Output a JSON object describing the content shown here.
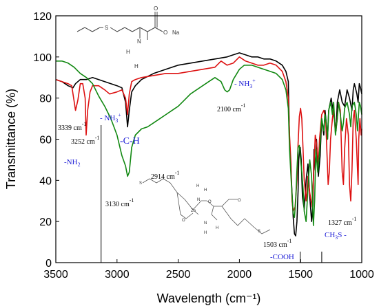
{
  "chart_data": {
    "type": "line",
    "title": "",
    "xlabel": "Wavelength (cm⁻¹)",
    "ylabel": "Transmittance (%)",
    "xlim": [
      3500,
      1000
    ],
    "ylim": [
      0,
      120
    ],
    "x_reversed": true,
    "x_ticks": [
      3500,
      3000,
      2500,
      2000,
      1500,
      1000
    ],
    "y_ticks": [
      0,
      20,
      40,
      60,
      80,
      100,
      120
    ],
    "grid": false,
    "legend": "none",
    "series": [
      {
        "color": "#000000",
        "points": [
          [
            3500,
            89
          ],
          [
            3450,
            88
          ],
          [
            3400,
            86
          ],
          [
            3360,
            85
          ],
          [
            3339,
            87
          ],
          [
            3300,
            89
          ],
          [
            3250,
            89
          ],
          [
            3200,
            90
          ],
          [
            3150,
            89
          ],
          [
            3100,
            88
          ],
          [
            3050,
            87
          ],
          [
            3000,
            86
          ],
          [
            2960,
            85
          ],
          [
            2930,
            78
          ],
          [
            2914,
            66
          ],
          [
            2900,
            74
          ],
          [
            2880,
            83
          ],
          [
            2850,
            86
          ],
          [
            2800,
            89
          ],
          [
            2700,
            92
          ],
          [
            2600,
            94
          ],
          [
            2500,
            96
          ],
          [
            2400,
            97
          ],
          [
            2300,
            98
          ],
          [
            2200,
            99
          ],
          [
            2100,
            100
          ],
          [
            2050,
            101
          ],
          [
            2000,
            102
          ],
          [
            1950,
            101
          ],
          [
            1900,
            100
          ],
          [
            1850,
            100
          ],
          [
            1800,
            99
          ],
          [
            1750,
            99
          ],
          [
            1700,
            98
          ],
          [
            1650,
            96
          ],
          [
            1620,
            93
          ],
          [
            1600,
            88
          ],
          [
            1590,
            60
          ],
          [
            1575,
            40
          ],
          [
            1560,
            22
          ],
          [
            1550,
            14
          ],
          [
            1540,
            13
          ],
          [
            1530,
            20
          ],
          [
            1520,
            35
          ],
          [
            1515,
            50
          ],
          [
            1508,
            55
          ],
          [
            1503,
            56
          ],
          [
            1495,
            50
          ],
          [
            1485,
            32
          ],
          [
            1470,
            26
          ],
          [
            1455,
            40
          ],
          [
            1440,
            48
          ],
          [
            1425,
            32
          ],
          [
            1410,
            20
          ],
          [
            1400,
            28
          ],
          [
            1390,
            55
          ],
          [
            1380,
            45
          ],
          [
            1370,
            60
          ],
          [
            1355,
            42
          ],
          [
            1340,
            52
          ],
          [
            1327,
            70
          ],
          [
            1310,
            62
          ],
          [
            1300,
            74
          ],
          [
            1290,
            68
          ],
          [
            1280,
            60
          ],
          [
            1270,
            74
          ],
          [
            1250,
            80
          ],
          [
            1230,
            72
          ],
          [
            1210,
            64
          ],
          [
            1200,
            78
          ],
          [
            1180,
            84
          ],
          [
            1160,
            78
          ],
          [
            1140,
            76
          ],
          [
            1120,
            84
          ],
          [
            1100,
            80
          ],
          [
            1080,
            74
          ],
          [
            1070,
            84
          ],
          [
            1060,
            87
          ],
          [
            1040,
            82
          ],
          [
            1030,
            78
          ],
          [
            1020,
            87
          ],
          [
            1010,
            85
          ],
          [
            1000,
            82
          ]
        ]
      },
      {
        "color": "#dd1111",
        "points": [
          [
            3500,
            89
          ],
          [
            3450,
            88
          ],
          [
            3400,
            87
          ],
          [
            3370,
            86
          ],
          [
            3339,
            74
          ],
          [
            3320,
            79
          ],
          [
            3300,
            87
          ],
          [
            3280,
            87
          ],
          [
            3260,
            80
          ],
          [
            3252,
            62
          ],
          [
            3240,
            74
          ],
          [
            3220,
            83
          ],
          [
            3200,
            86
          ],
          [
            3150,
            86
          ],
          [
            3100,
            84
          ],
          [
            3060,
            82
          ],
          [
            3000,
            83
          ],
          [
            2960,
            84
          ],
          [
            2930,
            80
          ],
          [
            2914,
            72
          ],
          [
            2900,
            82
          ],
          [
            2880,
            88
          ],
          [
            2850,
            89
          ],
          [
            2800,
            90
          ],
          [
            2700,
            91
          ],
          [
            2600,
            92
          ],
          [
            2500,
            92
          ],
          [
            2400,
            93
          ],
          [
            2300,
            94
          ],
          [
            2200,
            95
          ],
          [
            2150,
            98
          ],
          [
            2100,
            96
          ],
          [
            2050,
            97
          ],
          [
            2000,
            100
          ],
          [
            1950,
            98
          ],
          [
            1900,
            97
          ],
          [
            1850,
            96
          ],
          [
            1800,
            96
          ],
          [
            1750,
            97
          ],
          [
            1700,
            96
          ],
          [
            1650,
            93
          ],
          [
            1620,
            88
          ],
          [
            1600,
            80
          ],
          [
            1590,
            62
          ],
          [
            1578,
            48
          ],
          [
            1570,
            30
          ],
          [
            1560,
            25
          ],
          [
            1545,
            27
          ],
          [
            1530,
            40
          ],
          [
            1520,
            58
          ],
          [
            1510,
            71
          ],
          [
            1500,
            75
          ],
          [
            1490,
            70
          ],
          [
            1480,
            55
          ],
          [
            1470,
            40
          ],
          [
            1455,
            30
          ],
          [
            1440,
            42
          ],
          [
            1425,
            34
          ],
          [
            1405,
            27
          ],
          [
            1395,
            40
          ],
          [
            1380,
            62
          ],
          [
            1370,
            58
          ],
          [
            1355,
            48
          ],
          [
            1345,
            60
          ],
          [
            1327,
            72
          ],
          [
            1310,
            74
          ],
          [
            1295,
            70
          ],
          [
            1285,
            54
          ],
          [
            1275,
            38
          ],
          [
            1265,
            44
          ],
          [
            1255,
            60
          ],
          [
            1240,
            70
          ],
          [
            1230,
            75
          ],
          [
            1215,
            63
          ],
          [
            1200,
            70
          ],
          [
            1190,
            78
          ],
          [
            1175,
            74
          ],
          [
            1160,
            44
          ],
          [
            1150,
            38
          ],
          [
            1140,
            55
          ],
          [
            1125,
            70
          ],
          [
            1110,
            62
          ],
          [
            1100,
            38
          ],
          [
            1090,
            30
          ],
          [
            1080,
            45
          ],
          [
            1070,
            70
          ],
          [
            1060,
            74
          ],
          [
            1045,
            60
          ],
          [
            1030,
            38
          ],
          [
            1025,
            60
          ],
          [
            1015,
            70
          ],
          [
            1005,
            62
          ],
          [
            1000,
            65
          ]
        ]
      },
      {
        "color": "#118811",
        "points": [
          [
            3500,
            98
          ],
          [
            3450,
            98
          ],
          [
            3400,
            97
          ],
          [
            3350,
            95
          ],
          [
            3300,
            92
          ],
          [
            3250,
            90
          ],
          [
            3200,
            87
          ],
          [
            3150,
            81
          ],
          [
            3130,
            79
          ],
          [
            3100,
            76
          ],
          [
            3050,
            70
          ],
          [
            3000,
            62
          ],
          [
            2960,
            52
          ],
          [
            2930,
            47
          ],
          [
            2914,
            42
          ],
          [
            2900,
            44
          ],
          [
            2880,
            56
          ],
          [
            2850,
            62
          ],
          [
            2800,
            65
          ],
          [
            2750,
            66
          ],
          [
            2700,
            68
          ],
          [
            2650,
            70
          ],
          [
            2600,
            72
          ],
          [
            2550,
            74
          ],
          [
            2500,
            76
          ],
          [
            2450,
            79
          ],
          [
            2400,
            82
          ],
          [
            2350,
            84
          ],
          [
            2300,
            86
          ],
          [
            2250,
            88
          ],
          [
            2200,
            90
          ],
          [
            2150,
            88
          ],
          [
            2120,
            84
          ],
          [
            2100,
            83
          ],
          [
            2080,
            84
          ],
          [
            2050,
            89
          ],
          [
            2000,
            94
          ],
          [
            1960,
            96
          ],
          [
            1900,
            96
          ],
          [
            1850,
            95
          ],
          [
            1800,
            94
          ],
          [
            1750,
            93
          ],
          [
            1700,
            92
          ],
          [
            1650,
            89
          ],
          [
            1620,
            84
          ],
          [
            1600,
            75
          ],
          [
            1590,
            55
          ],
          [
            1575,
            38
          ],
          [
            1560,
            24
          ],
          [
            1550,
            22
          ],
          [
            1540,
            30
          ],
          [
            1530,
            45
          ],
          [
            1520,
            56
          ],
          [
            1510,
            57
          ],
          [
            1503,
            52
          ],
          [
            1490,
            44
          ],
          [
            1480,
            36
          ],
          [
            1470,
            25
          ],
          [
            1455,
            20
          ],
          [
            1440,
            36
          ],
          [
            1425,
            50
          ],
          [
            1410,
            42
          ],
          [
            1395,
            18
          ],
          [
            1385,
            30
          ],
          [
            1375,
            55
          ],
          [
            1360,
            44
          ],
          [
            1345,
            54
          ],
          [
            1335,
            62
          ],
          [
            1327,
            70
          ],
          [
            1310,
            64
          ],
          [
            1300,
            72
          ],
          [
            1290,
            68
          ],
          [
            1280,
            60
          ],
          [
            1270,
            74
          ],
          [
            1255,
            78
          ],
          [
            1240,
            72
          ],
          [
            1230,
            78
          ],
          [
            1215,
            62
          ],
          [
            1200,
            70
          ],
          [
            1190,
            78
          ],
          [
            1175,
            72
          ],
          [
            1160,
            64
          ],
          [
            1150,
            68
          ],
          [
            1140,
            75
          ],
          [
            1120,
            78
          ],
          [
            1100,
            72
          ],
          [
            1090,
            66
          ],
          [
            1080,
            76
          ],
          [
            1060,
            78
          ],
          [
            1045,
            72
          ],
          [
            1035,
            64
          ],
          [
            1020,
            78
          ],
          [
            1010,
            76
          ],
          [
            1000,
            72
          ]
        ]
      }
    ],
    "annotations": [
      {
        "text": "3339 cm",
        "sup": "-1",
        "color": "black"
      },
      {
        "text": "3252 cm",
        "sup": "-1",
        "color": "black"
      },
      {
        "text": "-NH",
        "sub": "2",
        "color": "blue"
      },
      {
        "text": "- NH",
        "sub": "3",
        "sup": "+",
        "color": "blue",
        "id": "nh3_left"
      },
      {
        "text": "-C-H",
        "color": "blue"
      },
      {
        "text": "2914 cm",
        "sup": "-1",
        "color": "black"
      },
      {
        "text": "3130 cm",
        "sup": "-1",
        "color": "black"
      },
      {
        "text": "- NH",
        "sub": "3",
        "sup": "+",
        "color": "blue",
        "id": "nh3_right"
      },
      {
        "text": "2100 cm",
        "sup": "-1",
        "color": "black"
      },
      {
        "text": "1503 cm",
        "sup": "-1",
        "color": "black"
      },
      {
        "text": "-COOH",
        "color": "blue"
      },
      {
        "text": "1327  cm",
        "sup": "-1",
        "color": "black"
      },
      {
        "text": "CH",
        "sub": "3",
        "tail": "S -",
        "color": "blue"
      }
    ],
    "markers": [
      3130,
      1503,
      1327
    ]
  },
  "molecules": {
    "top": {
      "na_label": "Na",
      "o_label": "O",
      "n_label": "N",
      "h_label": "H",
      "s_label": "S"
    },
    "bottom": {
      "zn_label": "Zn",
      "o_label": "O",
      "n_label": "N",
      "h_label": "H",
      "s_label": "S"
    }
  }
}
